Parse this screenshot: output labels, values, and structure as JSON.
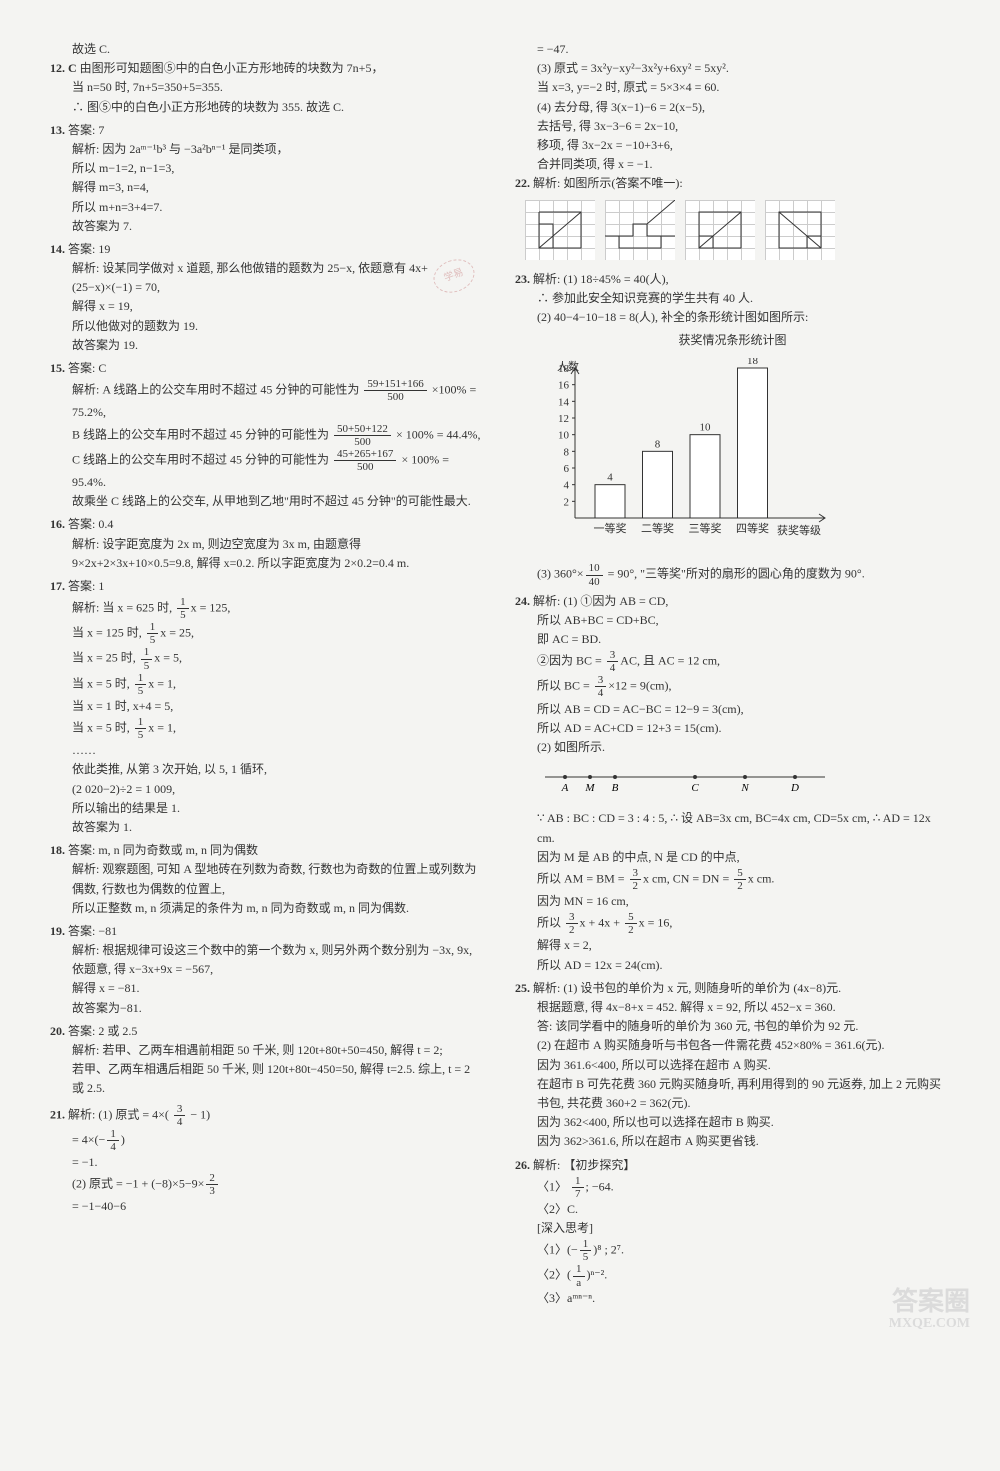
{
  "left": {
    "choose_c": "故选 C.",
    "q12": {
      "num": "12.",
      "ans": "C",
      "l1": "由图形可知题图⑤中的白色小正方形地砖的块数为 7n+5，",
      "l2": "当 n=50 时, 7n+5=350+5=355.",
      "l3": "∴ 图⑤中的白色小正方形地砖的块数为 355. 故选 C."
    },
    "q13": {
      "num": "13.",
      "ans": "答案: 7",
      "l": [
        "解析: 因为 2aᵐ⁻¹b³ 与 −3a²bⁿ⁻¹ 是同类项，",
        "所以 m−1=2, n−1=3,",
        "解得 m=3, n=4,",
        "所以 m+n=3+4=7.",
        "故答案为 7."
      ]
    },
    "q14": {
      "num": "14.",
      "ans": "答案: 19",
      "l": [
        "解析: 设某同学做对 x 道题, 那么他做错的题数为 25−x, 依题意有 4x+(25−x)×(−1) = 70,",
        "解得 x = 19,",
        "所以他做对的题数为 19.",
        "故答案为 19."
      ]
    },
    "q15": {
      "num": "15.",
      "ans": "答案: C",
      "l1a": "解析: A 线路上的公交车用时不超过 45 分钟的可能性为",
      "f1t": "59+151+166",
      "f1b": "500",
      "l1b": "×100% = 75.2%,",
      "l2a": "B 线路上的公交车用时不超过 45 分钟的可能性为",
      "f2t": "50+50+122",
      "f2b": "500",
      "l2b": "× 100% = 44.4%,",
      "l3a": "C 线路上的公交车用时不超过 45 分钟的可能性为",
      "f3t": "45+265+167",
      "f3b": "500",
      "l3b": "× 100% = 95.4%.",
      "l4": "故乘坐 C 线路上的公交车, 从甲地到乙地\"用时不超过 45 分钟\"的可能性最大."
    },
    "q16": {
      "num": "16.",
      "ans": "答案: 0.4",
      "l": "解析: 设字距宽度为 2x m, 则边空宽度为 3x m, 由题意得 9×2x+2×3x+10×0.5=9.8, 解得 x=0.2. 所以字距宽度为 2×0.2=0.4 m."
    },
    "q17": {
      "num": "17.",
      "ans": "答案: 1",
      "la": "解析: 当 x = 625 时,",
      "fa": "1",
      "fb": "5",
      "ra": "x = 125,",
      "lb": "当 x = 125 时,",
      "rb": "x = 25,",
      "lc": "当 x = 25 时,",
      "rc": "x = 5,",
      "ld": "当 x = 5 时,",
      "rd": "x = 1,",
      "le": "当 x = 1 时, x+4 = 5,",
      "lf": "当 x = 5 时,",
      "rf": "x = 1,",
      "dots": "……",
      "tail": [
        "依此类推, 从第 3 次开始, 以 5, 1 循环,",
        "(2 020−2)÷2 = 1 009,",
        "所以输出的结果是 1.",
        "故答案为 1."
      ]
    },
    "q18": {
      "num": "18.",
      "ans": "答案: m, n 同为奇数或 m, n 同为偶数",
      "l": [
        "解析: 观察题图, 可知 A 型地砖在列数为奇数, 行数也为奇数的位置上或列数为偶数, 行数也为偶数的位置上,",
        "所以正整数 m, n 须满足的条件为 m, n 同为奇数或 m, n 同为偶数."
      ]
    },
    "q19": {
      "num": "19.",
      "ans": "答案: −81",
      "l": [
        "解析: 根据规律可设这三个数中的第一个数为 x, 则另外两个数分别为 −3x, 9x,",
        "依题意, 得 x−3x+9x = −567,",
        "解得 x = −81.",
        "故答案为−81."
      ]
    },
    "q20": {
      "num": "20.",
      "ans": "答案: 2 或 2.5",
      "l": [
        "解析: 若甲、乙两车相遇前相距 50 千米, 则 120t+80t+50=450, 解得 t = 2;",
        "若甲、乙两车相遇后相距 50 千米, 则 120t+80t−450=50, 解得 t=2.5. 综上, t = 2 或 2.5."
      ]
    },
    "q21": {
      "num": "21.",
      "l1a": "解析: (1) 原式 = 4×(",
      "f1t": "3",
      "f1b": "4",
      "l1b": "− 1)",
      "l2a": "= 4×(−",
      "f2t": "1",
      "f2b": "4",
      "l2b": ")",
      "l3": "= −1.",
      "l4a": "(2) 原式 = −1 + (−8)×5−9×",
      "f4t": "2",
      "f4b": "3",
      "l5": "= −1−40−6"
    }
  },
  "right": {
    "top": [
      "= −47.",
      "(3) 原式 = 3x²y−xy²−3x²y+6xy² = 5xy².",
      "当 x=3, y=−2 时, 原式 = 5×3×4 = 60.",
      "(4) 去分母, 得 3(x−1)−6 = 2(x−5),",
      "去括号, 得 3x−3−6 = 2x−10,",
      "移项, 得 3x−2x = −10+3+6,",
      "合并同类项, 得 x = −1."
    ],
    "q22": "解析: 如图所示(答案不唯一):",
    "q23": {
      "num": "23.",
      "l1": "解析: (1) 18÷45% = 40(人),",
      "l2": "∴ 参加此安全知识竞赛的学生共有 40 人.",
      "l3": "(2) 40−4−10−18 = 8(人), 补全的条形统计图如图所示:",
      "chart_title": "获奖情况条形统计图",
      "chart": {
        "type": "bar",
        "ylabel": "人数",
        "xlabel": "获奖等级",
        "categories": [
          "一等奖",
          "二等奖",
          "三等奖",
          "四等奖"
        ],
        "values": [
          4,
          8,
          10,
          18
        ],
        "ylim": [
          0,
          18
        ],
        "yticks": [
          2,
          4,
          6,
          8,
          10,
          12,
          14,
          16,
          18
        ],
        "bar_color": "#ffffff",
        "bar_border": "#333",
        "bg": "#f4f4f2",
        "label_fontsize": 11
      },
      "l4a": "(3) 360°×",
      "f4t": "10",
      "f4b": "40",
      "l4b": " = 90°, \"三等奖\"所对的扇形的圆心角的度数为 90°."
    },
    "q24": {
      "num": "24.",
      "l": [
        "解析: (1) ①因为 AB = CD,",
        "所以 AB+BC = CD+BC,",
        "即 AC = BD."
      ],
      "l2a": "②因为 BC =",
      "f2t": "3",
      "f2b": "4",
      "l2b": "AC, 且 AC = 12 cm,",
      "l3a": "所以 BC =",
      "f3t": "3",
      "f3b": "4",
      "l3b": "×12 = 9(cm),",
      "l4": "所以 AB = CD = AC−BC = 12−9 = 3(cm),",
      "l5": "所以 AD = AC+CD = 12+3 = 15(cm).",
      "l6": "(2) 如图所示.",
      "points": [
        "A",
        "M",
        "B",
        "C",
        "N",
        "D"
      ],
      "l7": "∵ AB : BC : CD = 3 : 4 : 5, ∴ 设 AB=3x cm, BC=4x cm, CD=5x cm, ∴ AD = 12x cm.",
      "l8": "因为 M 是 AB 的中点, N 是 CD 的中点,",
      "l9a": "所以 AM = BM =",
      "f9t": "3",
      "f9b": "2",
      "l9b": "x cm, CN = DN =",
      "f9t2": "5",
      "f9b2": "2",
      "l9c": "x cm.",
      "l10": "因为 MN = 16 cm,",
      "l11a": "所以",
      "f11t": "3",
      "f11b": "2",
      "l11b": "x + 4x +",
      "f11t2": "5",
      "f11b2": "2",
      "l11c": "x = 16,",
      "l12": "解得 x = 2,",
      "l13": "所以 AD = 12x = 24(cm)."
    },
    "q25": {
      "num": "25.",
      "l": [
        "解析: (1) 设书包的单价为 x 元, 则随身听的单价为 (4x−8)元.",
        "根据题意, 得 4x−8+x = 452. 解得 x = 92, 所以 452−x = 360.",
        "答: 该同学看中的随身听的单价为 360 元, 书包的单价为 92 元.",
        "(2) 在超市 A 购买随身听与书包各一件需花费 452×80% = 361.6(元).",
        "因为 361.6<400, 所以可以选择在超市 A 购买.",
        "在超市 B 可先花费 360 元购买随身听, 再利用得到的 90 元返券, 加上 2 元购买书包, 共花费 360+2 = 362(元).",
        "因为 362<400, 所以也可以选择在超市 B 购买.",
        "因为 362>361.6, 所以在超市 A 购买更省钱."
      ]
    },
    "q26": {
      "num": "26.",
      "head": "解析: 【初步探究】",
      "l1a": "〈1〉",
      "f1t": "1",
      "f1b": "7",
      "l1b": "; −64.",
      "l2": "〈2〉C.",
      "deep": "[深入思考]",
      "d1a": "〈1〉(−",
      "df1t": "1",
      "df1b": "5",
      "d1b": ")⁸ ; 2⁷.",
      "d2a": "〈2〉(",
      "df2t": "1",
      "df2b": "a",
      "d2b": ")ⁿ⁻².",
      "d3": "〈3〉aᵐⁿ⁻ⁿ."
    }
  },
  "watermark": {
    "l1": "答案圈",
    "l2": "MXQE.COM"
  }
}
